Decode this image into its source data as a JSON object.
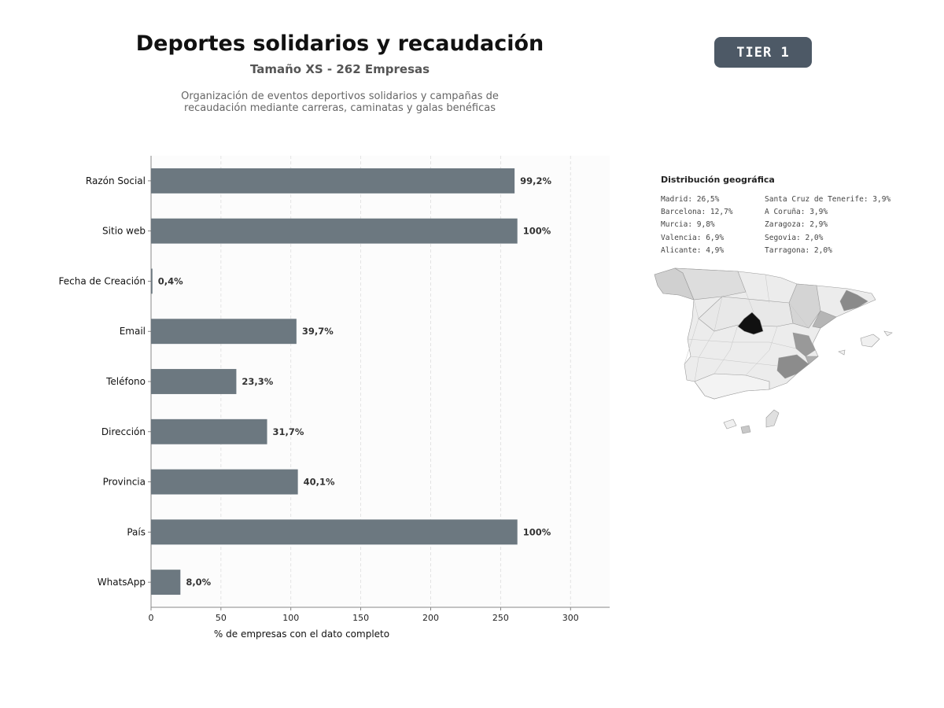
{
  "header": {
    "title": "Deportes solidarios y recaudación",
    "subtitle": "Tamaño XS - 262 Empresas",
    "description": "Organización de eventos deportivos solidarios y campañas de recaudación mediante carreras, caminatas y galas benéficas",
    "tier": "TIER 1"
  },
  "chart_data": {
    "type": "bar",
    "orientation": "horizontal",
    "categories": [
      "Razón Social",
      "Sitio web",
      "Fecha de Creación",
      "Email",
      "Teléfono",
      "Dirección",
      "Provincia",
      "País",
      "WhatsApp"
    ],
    "values": [
      260,
      262,
      1,
      104,
      61,
      83,
      105,
      262,
      21
    ],
    "data_labels": [
      "99,2%",
      "100%",
      "0,4%",
      "39,7%",
      "23,3%",
      "31,7%",
      "40,1%",
      "100%",
      "8,0%"
    ],
    "xlabel": "% de empresas con el dato completo",
    "xlim": [
      0,
      328
    ],
    "xticks": [
      0,
      50,
      100,
      150,
      200,
      250,
      300
    ],
    "grid": "vertical dashed",
    "bar_color": "#6c7880"
  },
  "geo": {
    "title": "Distribución geográfica",
    "col1": [
      "Madrid: 26,5%",
      "Barcelona: 12,7%",
      "Murcia: 9,8%",
      "Valencia: 6,9%",
      "Alicante: 4,9%"
    ],
    "col2": [
      "Santa Cruz de Tenerife: 3,9%",
      "A Coruña: 3,9%",
      "Zaragoza: 2,9%",
      "Segovia: 2,0%",
      "Tarragona: 2,0%"
    ]
  }
}
